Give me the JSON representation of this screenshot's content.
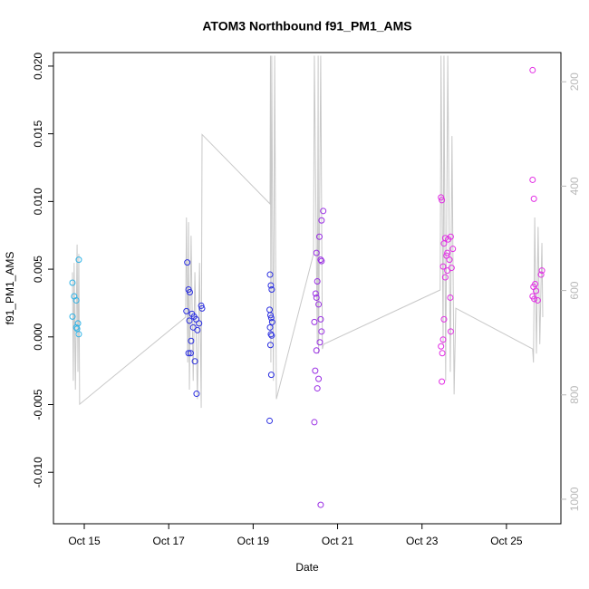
{
  "chart_data": {
    "type": "scatter",
    "title": "ATOM3 Northbound f91_PM1_AMS",
    "x_label": "Date",
    "y_label": "f91_PM1_AMS",
    "xlim": [
      14.27,
      26.29
    ],
    "xticks": [
      {
        "value": 15,
        "label": "Oct 15"
      },
      {
        "value": 17,
        "label": "Oct 17"
      },
      {
        "value": 19,
        "label": "Oct 19"
      },
      {
        "value": 21,
        "label": "Oct 21"
      },
      {
        "value": 23,
        "label": "Oct 23"
      },
      {
        "value": 25,
        "label": "Oct 25"
      }
    ],
    "ylim": [
      -0.0138,
      0.021
    ],
    "yticks": [
      {
        "value": -0.01,
        "label": "-0.010"
      },
      -0.005,
      {
        "value": 0,
        "label": "0.000"
      },
      0.005,
      {
        "value": 0.01,
        "label": "0.010"
      },
      0.015,
      {
        "value": 0.02,
        "label": "0.020"
      }
    ],
    "y2lim": [
      1047,
      144
    ],
    "y2ticks": [
      200,
      400,
      600,
      800,
      1000
    ],
    "series": [
      {
        "color": "#2fb3e6",
        "x": [
          14.72,
          14.76,
          14.81,
          14.72,
          14.85,
          14.81,
          14.83,
          14.87,
          14.87
        ],
        "values": [
          0.004,
          0.003,
          0.0027,
          0.0015,
          0.001,
          0.0007,
          0.0006,
          0.0002,
          0.0057
        ]
      },
      {
        "color": "#2a2ee0",
        "x": [
          17.44,
          17.47,
          17.5,
          17.42,
          17.55,
          17.6,
          17.65,
          17.49,
          17.72,
          17.58,
          17.68,
          17.53,
          17.47,
          17.52,
          17.62,
          17.66,
          17.77,
          17.79,
          19.4,
          19.42,
          19.44,
          19.39,
          19.41,
          19.43,
          19.45,
          19.4,
          19.42,
          19.44,
          19.41,
          19.43,
          19.39
        ],
        "values": [
          0.0055,
          0.0035,
          0.0033,
          0.0019,
          0.0017,
          0.0015,
          0.0013,
          0.0012,
          0.001,
          0.0007,
          0.0005,
          -0.0003,
          -0.0012,
          -0.0012,
          -0.0018,
          -0.0042,
          0.0023,
          0.0021,
          0.0046,
          0.0038,
          0.0035,
          0.002,
          0.0016,
          0.0014,
          0.0011,
          0.0007,
          0.0002,
          0.0001,
          -0.0006,
          -0.0028,
          -0.0062
        ]
      },
      {
        "color": "#9a2ee4",
        "x": [
          20.66,
          20.62,
          20.57,
          20.5,
          20.6,
          20.62,
          20.52,
          20.48,
          20.5,
          20.55,
          20.6,
          20.45,
          20.62,
          20.58,
          20.5,
          20.47,
          20.55,
          20.52,
          20.45,
          20.6
        ],
        "values": [
          0.0093,
          0.0086,
          0.0074,
          0.0062,
          0.0057,
          0.0056,
          0.0041,
          0.0032,
          0.0029,
          0.0024,
          0.0013,
          0.0011,
          0.0004,
          -0.0004,
          -0.001,
          -0.0025,
          -0.0031,
          -0.0038,
          -0.0063,
          -0.0124
        ]
      },
      {
        "color": "#e22ee4",
        "x": [
          23.45,
          23.47,
          23.55,
          23.62,
          23.68,
          23.52,
          23.6,
          23.73,
          23.58,
          23.65,
          23.5,
          23.7,
          23.6,
          23.55,
          23.67,
          23.52,
          23.68,
          23.5,
          23.45,
          23.48,
          23.47,
          25.62,
          25.62,
          25.65,
          25.84,
          25.68,
          25.64,
          25.7,
          25.62,
          25.66,
          25.74,
          25.82
        ],
        "values": [
          0.0103,
          0.0101,
          0.0073,
          0.0072,
          0.0074,
          0.0069,
          0.0062,
          0.0065,
          0.006,
          0.0057,
          0.0052,
          0.0051,
          0.0049,
          0.0044,
          0.0029,
          0.0013,
          0.0004,
          -0.0002,
          -0.0007,
          -0.0012,
          -0.0033,
          0.0197,
          0.0116,
          0.0102,
          0.0049,
          0.0039,
          0.0037,
          0.0034,
          0.003,
          0.0028,
          0.0027,
          0.0046
        ]
      },
      {
        "color": "#c8c8c8",
        "axis": "y2",
        "x": [
          14.72,
          14.74,
          14.76,
          14.79,
          14.83,
          14.85,
          14.87,
          14.89,
          17.4,
          17.42,
          17.45,
          17.47,
          17.49,
          17.53,
          17.58,
          17.62,
          17.68,
          17.73,
          17.77,
          17.79,
          19.4,
          19.41,
          19.42,
          19.44,
          19.48,
          19.51,
          19.55,
          20.43,
          20.45,
          20.52,
          20.54,
          20.55,
          20.6,
          20.64,
          20.67,
          23.43,
          23.45,
          23.5,
          23.52,
          23.56,
          23.61,
          23.67,
          23.71,
          23.76,
          23.8,
          25.62,
          25.64,
          25.67,
          25.71,
          25.75,
          25.79,
          25.84,
          25.86
        ],
        "values": [
          565,
          773,
          547,
          790,
          512,
          756,
          530,
          818,
          651,
          460,
          738,
          469,
          790,
          495,
          773,
          565,
          808,
          547,
          825,
          301,
          434,
          150,
          738,
          150,
          773,
          150,
          808,
          530,
          150,
          703,
          150,
          721,
          150,
          712,
          703,
          599,
          150,
          703,
          150,
          773,
          150,
          756,
          304,
          799,
          634,
          712,
          738,
          460,
          721,
          478,
          703,
          509,
          651
        ]
      }
    ]
  }
}
